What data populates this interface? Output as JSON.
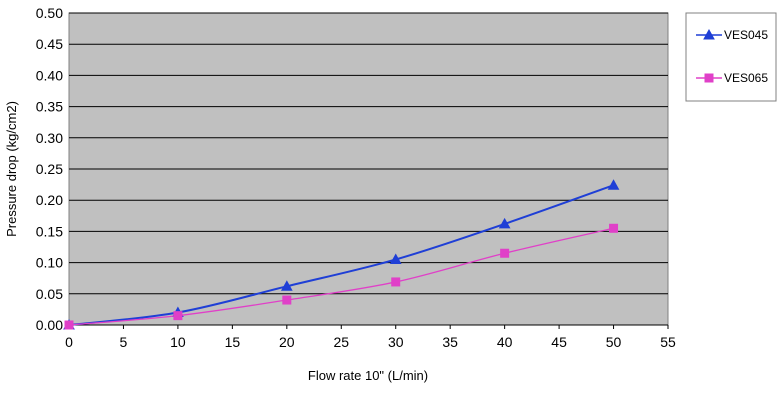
{
  "chart_data": {
    "type": "line",
    "title": "",
    "xlabel": "Flow rate 10\" (L/min)",
    "ylabel": "Pressure drop (kg/cm2)",
    "xlim": [
      0,
      55
    ],
    "ylim": [
      0,
      0.5
    ],
    "x_ticks": [
      "0",
      "5",
      "10",
      "15",
      "20",
      "25",
      "30",
      "35",
      "40",
      "45",
      "50",
      "55"
    ],
    "x_tick_values": [
      0,
      5,
      10,
      15,
      20,
      25,
      30,
      35,
      40,
      45,
      50,
      55
    ],
    "y_ticks": [
      "0.00",
      "0.05",
      "0.10",
      "0.15",
      "0.20",
      "0.25",
      "0.30",
      "0.35",
      "0.40",
      "0.45",
      "0.50"
    ],
    "y_tick_values": [
      0,
      0.05,
      0.1,
      0.15,
      0.2,
      0.25,
      0.3,
      0.35,
      0.4,
      0.45,
      0.5
    ],
    "grid": "horizontal",
    "plot_background": "#c0c0c0",
    "legend_position": "right",
    "series": [
      {
        "name": "VES045",
        "color": "#1f3fd6",
        "marker": "triangle",
        "x": [
          0,
          10,
          20,
          30,
          40,
          50
        ],
        "y": [
          0.0,
          0.02,
          0.062,
          0.105,
          0.162,
          0.224
        ]
      },
      {
        "name": "VES065",
        "color": "#e040c8",
        "marker": "square",
        "x": [
          0,
          10,
          20,
          30,
          40,
          50
        ],
        "y": [
          0.0,
          0.015,
          0.04,
          0.069,
          0.115,
          0.155
        ]
      }
    ]
  }
}
